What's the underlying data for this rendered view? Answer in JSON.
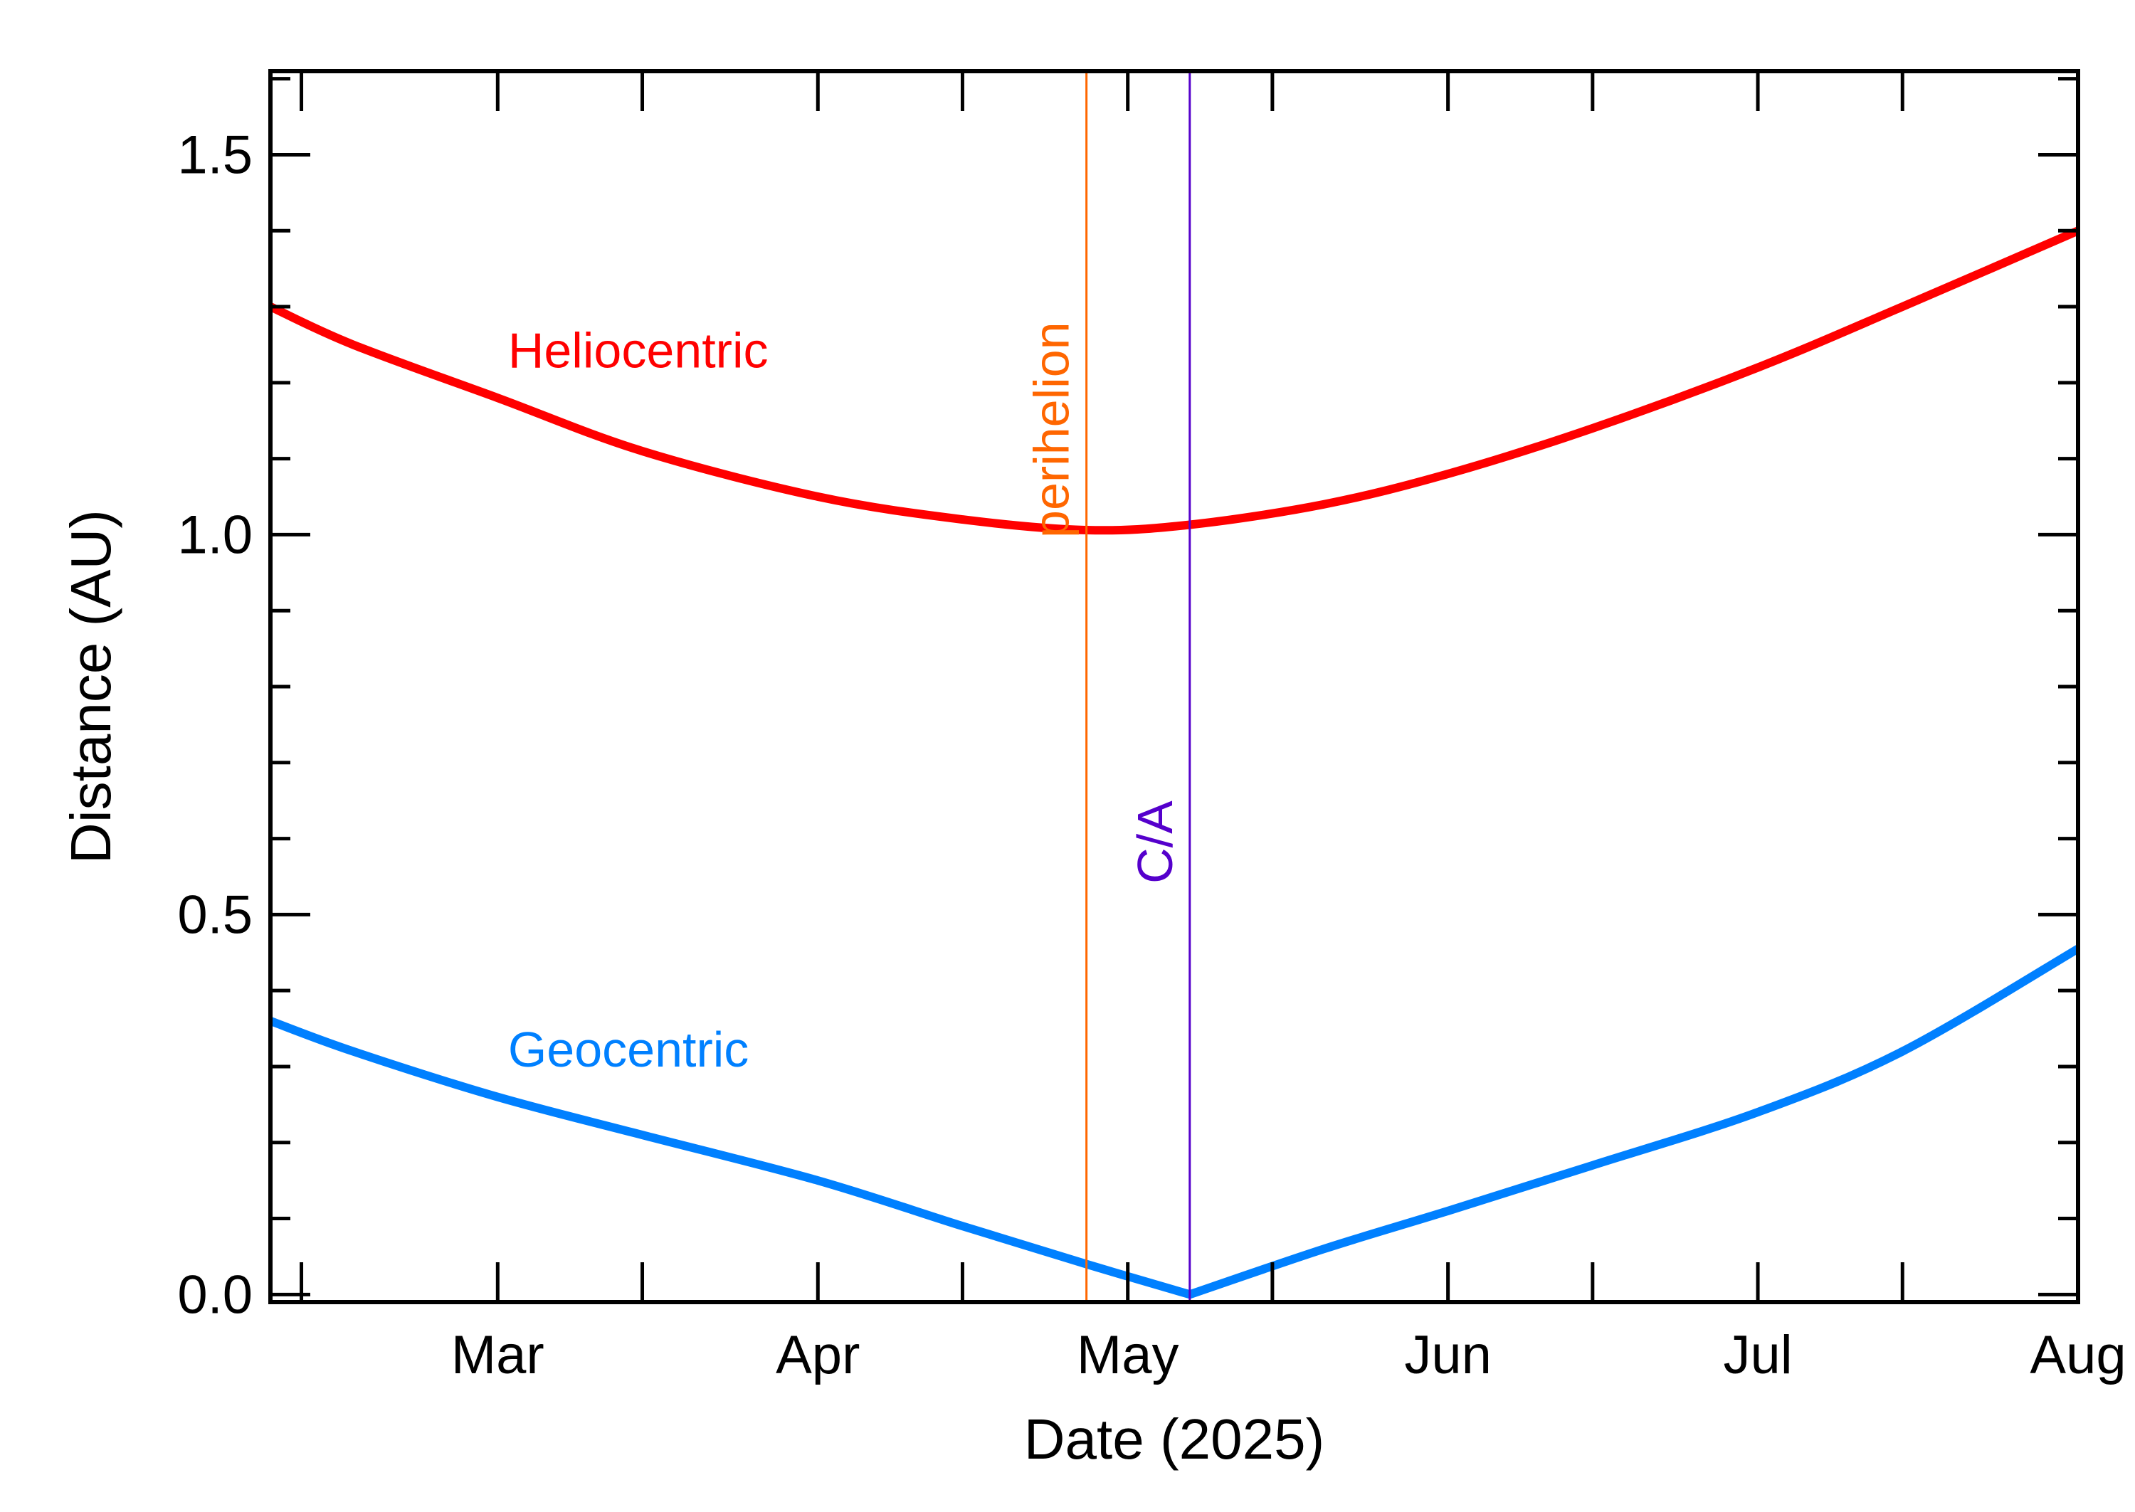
{
  "chart_data": {
    "type": "line",
    "xlabel": "Date (2025)",
    "ylabel": "Distance (AU)",
    "xlim": [
      "2025-02-07",
      "2025-08-01"
    ],
    "ylim": [
      -0.01,
      1.61
    ],
    "x_ticks": [
      {
        "date": "2025-03-01",
        "label": "Mar"
      },
      {
        "date": "2025-04-01",
        "label": "Apr"
      },
      {
        "date": "2025-05-01",
        "label": "May"
      },
      {
        "date": "2025-06-01",
        "label": "Jun"
      },
      {
        "date": "2025-07-01",
        "label": "Jul"
      },
      {
        "date": "2025-08-01",
        "label": "Aug"
      }
    ],
    "y_ticks": [
      0.0,
      0.5,
      1.0,
      1.5
    ],
    "y_tick_labels": [
      "0.0",
      "0.5",
      "1.0",
      "1.5"
    ],
    "y_minor_step": 0.1,
    "grid": false,
    "series": [
      {
        "name": "Heliocentric",
        "color": "#ff0000",
        "points": [
          [
            "2025-02-07",
            1.3
          ],
          [
            "2025-02-15",
            1.25
          ],
          [
            "2025-03-01",
            1.18
          ],
          [
            "2025-03-15",
            1.11
          ],
          [
            "2025-04-01",
            1.05
          ],
          [
            "2025-04-15",
            1.02
          ],
          [
            "2025-04-27",
            1.006
          ],
          [
            "2025-05-07",
            1.013
          ],
          [
            "2025-05-20",
            1.04
          ],
          [
            "2025-06-01",
            1.08
          ],
          [
            "2025-06-15",
            1.14
          ],
          [
            "2025-07-01",
            1.22
          ],
          [
            "2025-07-15",
            1.3
          ],
          [
            "2025-08-01",
            1.4
          ]
        ]
      },
      {
        "name": "Geocentric",
        "color": "#0080ff",
        "points": [
          [
            "2025-02-07",
            0.36
          ],
          [
            "2025-02-15",
            0.32
          ],
          [
            "2025-03-01",
            0.26
          ],
          [
            "2025-03-15",
            0.21
          ],
          [
            "2025-04-01",
            0.15
          ],
          [
            "2025-04-15",
            0.09
          ],
          [
            "2025-04-27",
            0.04
          ],
          [
            "2025-05-07",
            0.0
          ],
          [
            "2025-05-20",
            0.06
          ],
          [
            "2025-06-01",
            0.11
          ],
          [
            "2025-06-15",
            0.17
          ],
          [
            "2025-07-01",
            0.24
          ],
          [
            "2025-07-15",
            0.32
          ],
          [
            "2025-08-01",
            0.455
          ]
        ]
      }
    ],
    "markers": [
      {
        "label": "perihelion",
        "date": "2025-04-27",
        "color": "#ff6600",
        "label_y": 1.28
      },
      {
        "label": "C/A",
        "date": "2025-05-07",
        "color": "#5500cc",
        "label_y": 0.65
      }
    ],
    "series_labels": [
      {
        "text": "Heliocentric",
        "date": "2025-03-02",
        "y": 1.22,
        "color": "#ff0000"
      },
      {
        "text": "Geocentric",
        "date": "2025-03-02",
        "y": 0.3,
        "color": "#0080ff"
      }
    ]
  }
}
